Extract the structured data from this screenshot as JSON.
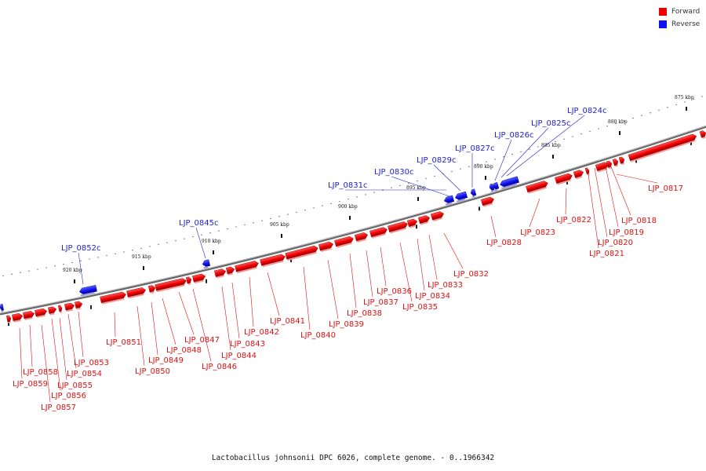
{
  "legend": {
    "forward_label": "Forward",
    "reverse_label": "Reverse",
    "forward_color": "#ee0000",
    "reverse_color": "#1111ee"
  },
  "caption": "Lactobacillus johnsonii DPC 6026, complete genome. - 0..1966342",
  "scale_labels": [
    "875 kbp",
    "880 kbp",
    "885 kbp",
    "890 kbp",
    "895 kbp",
    "900 kbp",
    "905 kbp",
    "910 kbp",
    "915 kbp",
    "920 kbp"
  ],
  "forward_genes": [
    "LJP_0817",
    "LJP_0818",
    "LJP_0819",
    "LJP_0820",
    "LJP_0821",
    "LJP_0822",
    "LJP_0823",
    "LJP_0828",
    "LJP_0832",
    "LJP_0833",
    "LJP_0834",
    "LJP_0835",
    "LJP_0836",
    "LJP_0837",
    "LJP_0838",
    "LJP_0839",
    "LJP_0840",
    "LJP_0841",
    "LJP_0842",
    "LJP_0843",
    "LJP_0844",
    "LJP_0846",
    "LJP_0847",
    "LJP_0848",
    "LJP_0849",
    "LJP_0850",
    "LJP_0851",
    "LJP_0853",
    "LJP_0854",
    "LJP_0855",
    "LJP_0856",
    "LJP_0857",
    "LJP_0858",
    "LJP_0859"
  ],
  "reverse_genes": [
    "LJP_0824c",
    "LJP_0825c",
    "LJP_0826c",
    "LJP_0827c",
    "LJP_0829c",
    "LJP_0830c",
    "LJP_0831c",
    "LJP_0845c",
    "LJP_0852c"
  ]
}
